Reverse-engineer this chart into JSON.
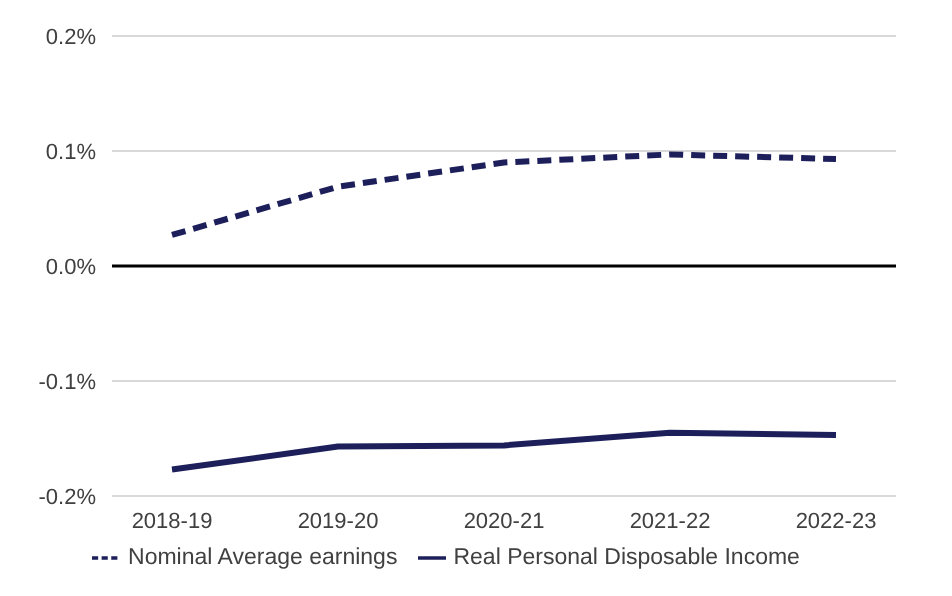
{
  "chart_data": {
    "type": "line",
    "categories": [
      "2018-19",
      "2019-20",
      "2020-21",
      "2021-22",
      "2022-23"
    ],
    "series": [
      {
        "name": "Nominal Average earnings",
        "color": "#1c1f5a",
        "line_style": "dashed",
        "values": [
          0.027,
          0.069,
          0.09,
          0.097,
          0.093
        ]
      },
      {
        "name": "Real Personal Disposable Income",
        "color": "#1c1f5a",
        "line_style": "solid",
        "values": [
          -0.177,
          -0.157,
          -0.156,
          -0.145,
          -0.147
        ]
      }
    ],
    "ylim": [
      -0.2,
      0.2
    ],
    "yticks": [
      {
        "value": -0.2,
        "label": "-0.2%"
      },
      {
        "value": -0.1,
        "label": "-0.1%"
      },
      {
        "value": 0,
        "label": "0.0%"
      },
      {
        "value": 0.1,
        "label": "0.1%"
      },
      {
        "value": 0.2,
        "label": "0.2%"
      }
    ],
    "ref_lines": [
      {
        "axis": "y",
        "value": 0,
        "color": "#000000"
      }
    ],
    "grid": "y",
    "legend": "bottom",
    "marker": "none"
  }
}
